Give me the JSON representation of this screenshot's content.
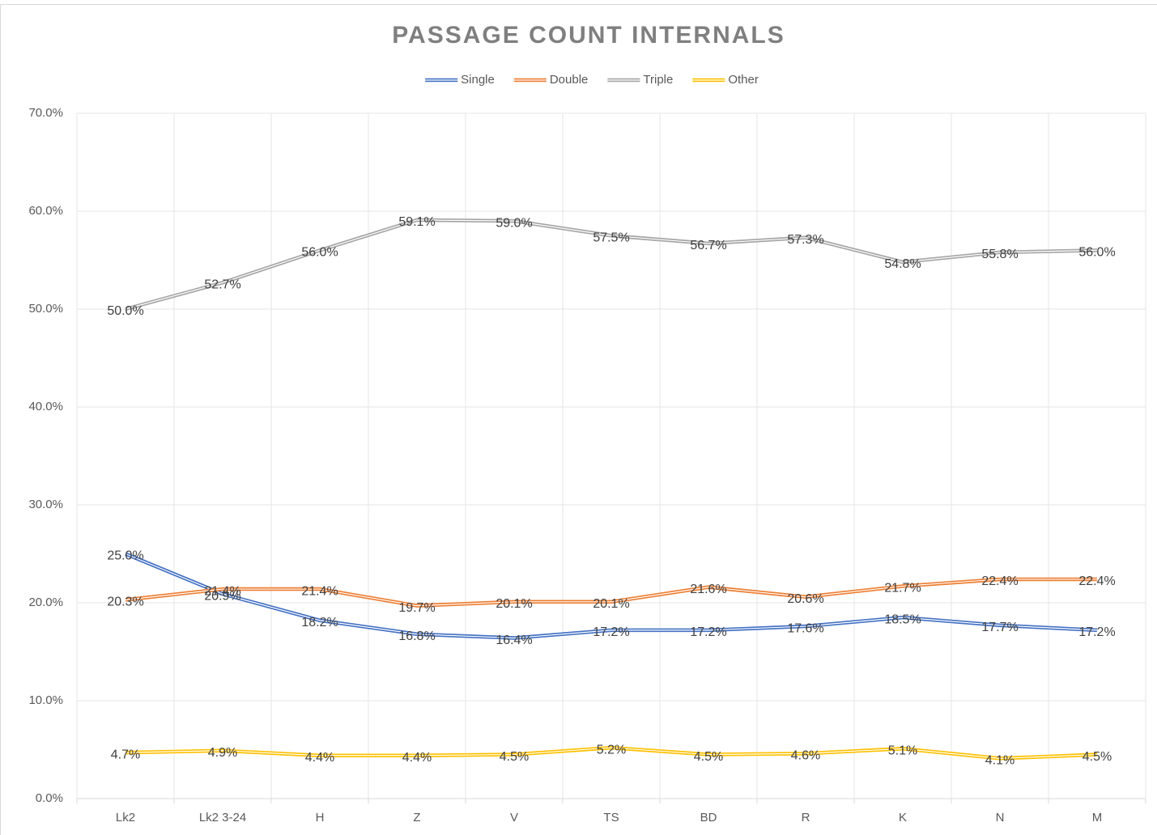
{
  "chart_data": {
    "type": "line",
    "title": "PASSAGE COUNT INTERNALS",
    "categories": [
      "Lk2",
      "Lk2 3-24",
      "H",
      "Z",
      "V",
      "TS",
      "BD",
      "R",
      "K",
      "N",
      "M"
    ],
    "series": [
      {
        "name": "Single",
        "color": "#4472c4",
        "values": [
          25.0,
          20.9,
          18.2,
          16.8,
          16.4,
          17.2,
          17.2,
          17.6,
          18.5,
          17.7,
          17.2
        ],
        "value_labels": [
          "25.0%",
          "20.9%",
          "18.2%",
          "16.8%",
          "16.4%",
          "17.2%",
          "17.2%",
          "17.6%",
          "18.5%",
          "17.7%",
          "17.2%"
        ]
      },
      {
        "name": "Double",
        "color": "#ed7d31",
        "values": [
          20.3,
          21.4,
          21.4,
          19.7,
          20.1,
          20.1,
          21.6,
          20.6,
          21.7,
          22.4,
          22.4
        ],
        "value_labels": [
          "20.3%",
          "21.4%",
          "21.4%",
          "19.7%",
          "20.1%",
          "20.1%",
          "21.6%",
          "20.6%",
          "21.7%",
          "22.4%",
          "22.4%"
        ]
      },
      {
        "name": "Triple",
        "color": "#a5a5a5",
        "values": [
          50.0,
          52.7,
          56.0,
          59.1,
          59.0,
          57.5,
          56.7,
          57.3,
          54.8,
          55.8,
          56.0
        ],
        "value_labels": [
          "50.0%",
          "52.7%",
          "56.0%",
          "59.1%",
          "59.0%",
          "57.5%",
          "56.7%",
          "57.3%",
          "54.8%",
          "55.8%",
          "56.0%"
        ]
      },
      {
        "name": "Other",
        "color": "#ffc000",
        "values": [
          4.7,
          4.9,
          4.4,
          4.4,
          4.5,
          5.2,
          4.5,
          4.6,
          5.1,
          4.1,
          4.5
        ],
        "value_labels": [
          "4.7%",
          "4.9%",
          "4.4%",
          "4.4%",
          "4.5%",
          "5.2%",
          "4.5%",
          "4.6%",
          "5.1%",
          "4.1%",
          "4.5%"
        ]
      }
    ],
    "ylim": [
      0,
      70
    ],
    "yticks": [
      {
        "value": 0,
        "label": "0.0%"
      },
      {
        "value": 10,
        "label": "10.0%"
      },
      {
        "value": 20,
        "label": "20.0%"
      },
      {
        "value": 30,
        "label": "30.0%"
      },
      {
        "value": 40,
        "label": "40.0%"
      },
      {
        "value": 50,
        "label": "50.0%"
      },
      {
        "value": 60,
        "label": "60.0%"
      },
      {
        "value": 70,
        "label": "70.0%"
      }
    ],
    "grid": true,
    "legend": "top"
  }
}
